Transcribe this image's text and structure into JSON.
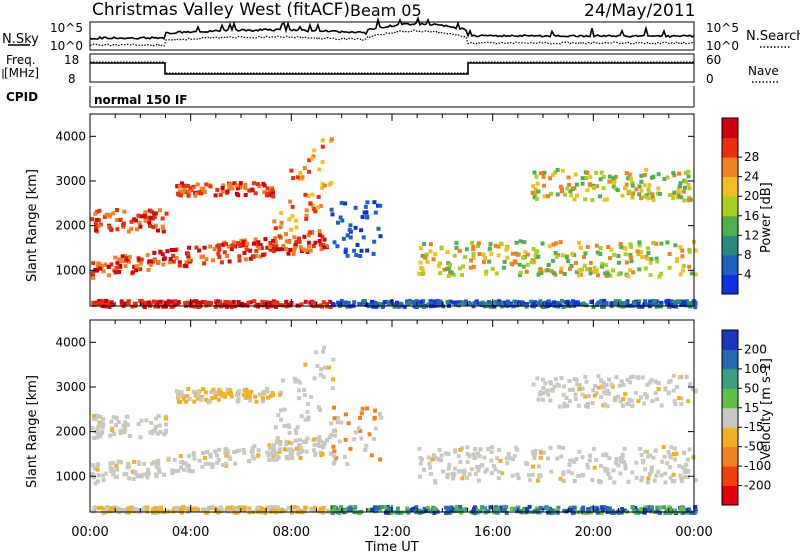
{
  "title": "Christmas Valley West (fitACF)",
  "beam": "Beam 05",
  "date": "24/May/2011",
  "header_panels": {
    "nsky_label": "N.Sky",
    "nsearch_label": "N.Search",
    "nsky_left_ticks": [
      "10^5",
      "10^0"
    ],
    "nsky_right_ticks": [
      "10^5",
      "10^0"
    ],
    "freq_label_1": "Freq.",
    "freq_label_2": "[MHz]",
    "freq_ticks": [
      "18",
      "8"
    ],
    "nave_label": "Nave",
    "nave_ticks": [
      "60",
      "0"
    ],
    "cpid_label": "CPID",
    "cpid_text": "normal 150 IF"
  },
  "chart_data": [
    {
      "type": "heatmap",
      "name": "power",
      "ylabel": "Slant Range [km]",
      "xlabel": "Time UT",
      "x_ticks": [
        "00:00",
        "04:00",
        "08:00",
        "12:00",
        "16:00",
        "20:00",
        "00:00"
      ],
      "y_ticks": [
        1000,
        2000,
        3000,
        4000
      ],
      "ylim": [
        200,
        4500
      ],
      "xlim_hours": [
        0,
        24
      ],
      "colorbar": {
        "label": "Power [dB]",
        "ticks": [
          "4",
          "8",
          "12",
          "16",
          "20",
          "24",
          "28"
        ],
        "colors": [
          "#1030e0",
          "#2060c0",
          "#2a8a7a",
          "#50b050",
          "#a8d020",
          "#f0c020",
          "#f08020",
          "#e83010",
          "#d00010"
        ]
      }
    },
    {
      "type": "heatmap",
      "name": "velocity",
      "ylabel": "Slant Range [km]",
      "xlabel": "Time UT",
      "x_ticks": [
        "00:00",
        "04:00",
        "08:00",
        "12:00",
        "16:00",
        "20:00",
        "00:00"
      ],
      "y_ticks": [
        1000,
        2000,
        3000,
        4000
      ],
      "ylim": [
        200,
        4500
      ],
      "xlim_hours": [
        0,
        24
      ],
      "colorbar": {
        "label": "Velocity [m s-1]",
        "ticks": [
          "200",
          "100",
          "50",
          "15",
          "-15",
          "-50",
          "-100",
          "-200"
        ],
        "colors": [
          "#1838c0",
          "#2a6ab0",
          "#3aa080",
          "#60c040",
          "#c8c8c0",
          "#f0b020",
          "#f08020",
          "#f04010",
          "#e00010"
        ]
      }
    }
  ],
  "x_axis_label": "Time UT"
}
